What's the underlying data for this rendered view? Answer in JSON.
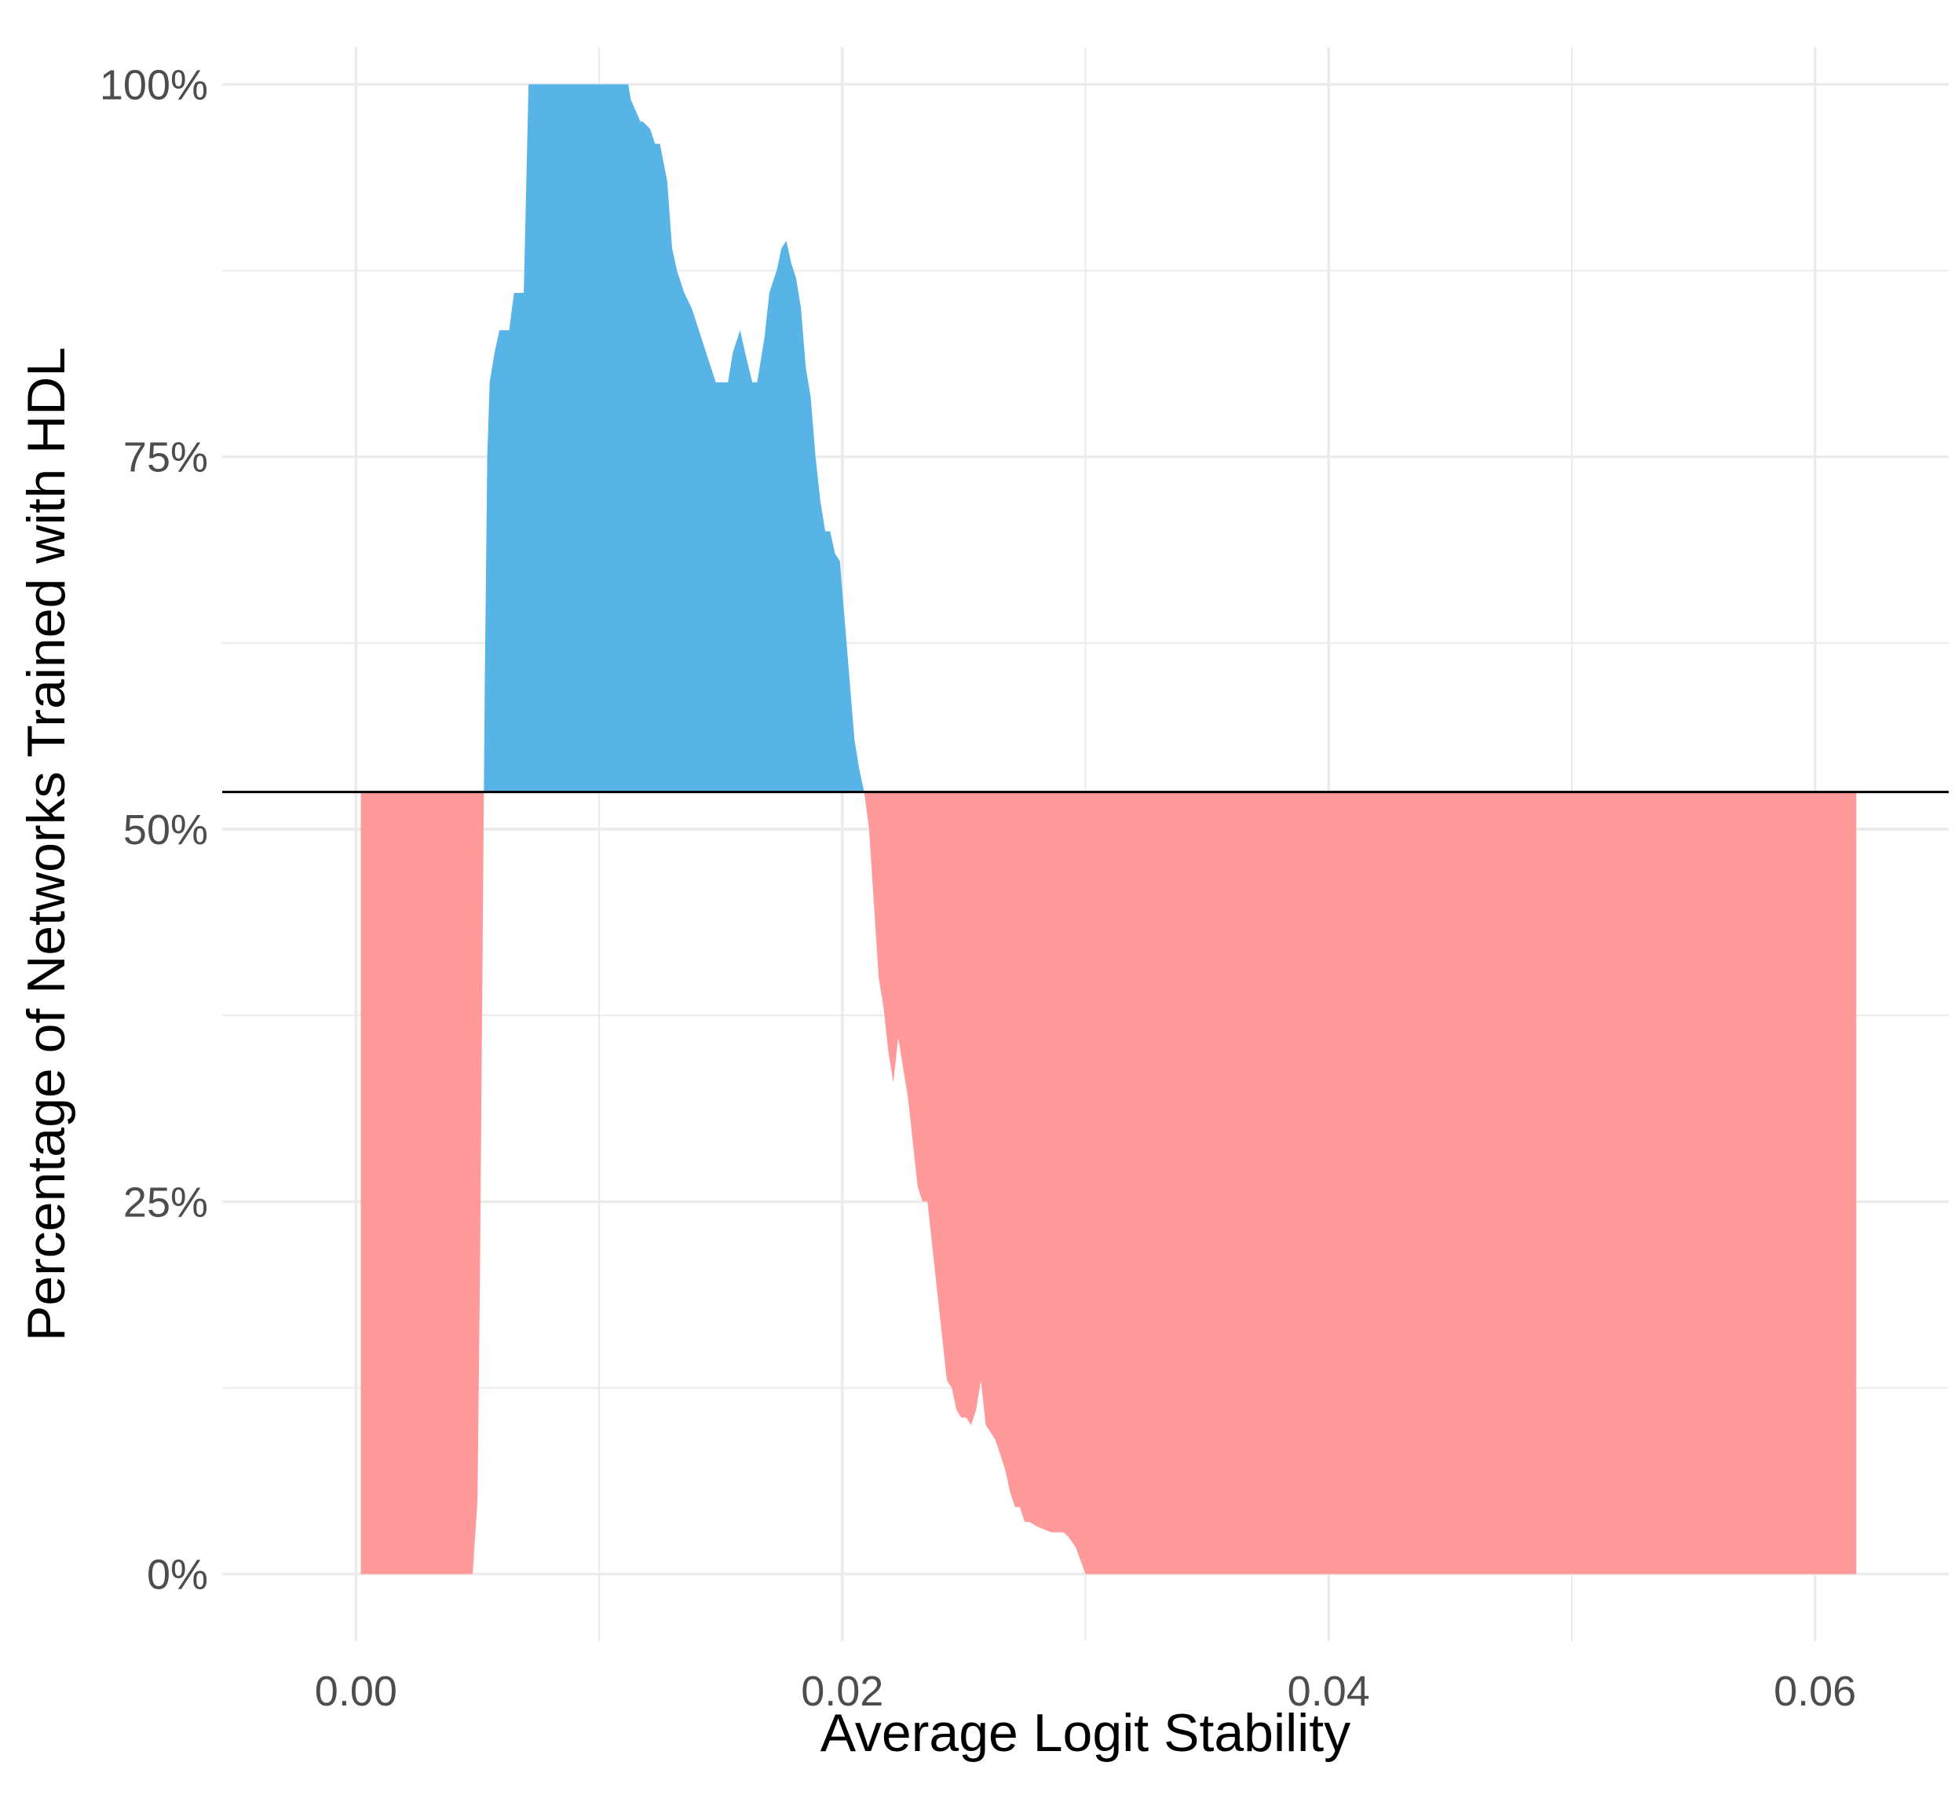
{
  "chart_data": {
    "type": "area",
    "title": "",
    "xlabel": "Average Logit Stability",
    "ylabel": "Percentage of Networks Trained with HDL",
    "xlim": [
      -0.0055,
      0.0655
    ],
    "ylim": [
      -0.045,
      1.025
    ],
    "x_ticks": [
      0.0,
      0.02,
      0.04,
      0.06
    ],
    "x_tick_labels": [
      "0.00",
      "0.02",
      "0.04",
      "0.06"
    ],
    "y_ticks": [
      0,
      0.25,
      0.5,
      0.75,
      1.0
    ],
    "y_tick_labels": [
      "0%",
      "25%",
      "50%",
      "75%",
      "100%"
    ],
    "reference_line": 0.525,
    "grid": true,
    "colors": {
      "above": "#58b3e6",
      "below": "#ff999a",
      "reference": "#000000",
      "grid": "#ebebeb"
    },
    "series": [
      {
        "x": [
          0.0002,
          0.0048,
          0.005,
          0.0051,
          0.0052,
          0.0053,
          0.0054,
          0.0055,
          0.0057,
          0.0059,
          0.0061,
          0.0063,
          0.0065,
          0.0067,
          0.0069,
          0.0071,
          0.0073,
          0.0075,
          0.0076,
          0.009,
          0.0098,
          0.01,
          0.0108,
          0.0112,
          0.0113,
          0.0117,
          0.0118,
          0.0121,
          0.0123,
          0.0125,
          0.0128,
          0.013,
          0.0132,
          0.0135,
          0.0138,
          0.014,
          0.0143,
          0.0145,
          0.0148,
          0.015,
          0.0153,
          0.0155,
          0.0158,
          0.016,
          0.0163,
          0.0165,
          0.0168,
          0.017,
          0.0173,
          0.0175,
          0.0177,
          0.0179,
          0.0181,
          0.0183,
          0.0185,
          0.0187,
          0.0189,
          0.0191,
          0.0193,
          0.0195,
          0.0197,
          0.0199,
          0.0201,
          0.0203,
          0.0205,
          0.0207,
          0.0209,
          0.0211,
          0.0213,
          0.0215,
          0.0217,
          0.0219,
          0.0221,
          0.0223,
          0.0225,
          0.0227,
          0.0229,
          0.0231,
          0.0233,
          0.0235,
          0.0237,
          0.0239,
          0.0241,
          0.0243,
          0.0245,
          0.0247,
          0.0249,
          0.0251,
          0.0253,
          0.0255,
          0.0257,
          0.0259,
          0.0261,
          0.0263,
          0.0265,
          0.0267,
          0.0269,
          0.0271,
          0.0273,
          0.0275,
          0.0277,
          0.028,
          0.0283,
          0.0286,
          0.0289,
          0.0291,
          0.0293,
          0.0296,
          0.03,
          0.035,
          0.04,
          0.045,
          0.05,
          0.055,
          0.06,
          0.0617
        ],
        "y": [
          0.0,
          0.0,
          0.05,
          0.2,
          0.4,
          0.6,
          0.75,
          0.8,
          0.82,
          0.835,
          0.835,
          0.835,
          0.86,
          0.86,
          0.86,
          1.0,
          1.0,
          1.0,
          1.0,
          1.0,
          1.0,
          1.0,
          1.0,
          1.0,
          0.99,
          0.975,
          0.975,
          0.97,
          0.96,
          0.96,
          0.935,
          0.89,
          0.875,
          0.86,
          0.85,
          0.84,
          0.825,
          0.815,
          0.8,
          0.8,
          0.8,
          0.82,
          0.835,
          0.82,
          0.8,
          0.8,
          0.83,
          0.86,
          0.875,
          0.89,
          0.895,
          0.88,
          0.87,
          0.85,
          0.81,
          0.79,
          0.75,
          0.72,
          0.7,
          0.7,
          0.685,
          0.68,
          0.64,
          0.6,
          0.56,
          0.54,
          0.525,
          0.5,
          0.45,
          0.4,
          0.38,
          0.35,
          0.33,
          0.36,
          0.34,
          0.32,
          0.29,
          0.26,
          0.25,
          0.25,
          0.22,
          0.19,
          0.16,
          0.13,
          0.125,
          0.11,
          0.105,
          0.105,
          0.1,
          0.11,
          0.13,
          0.1,
          0.095,
          0.09,
          0.08,
          0.07,
          0.055,
          0.045,
          0.045,
          0.035,
          0.035,
          0.032,
          0.03,
          0.028,
          0.028,
          0.028,
          0.025,
          0.018,
          0.0,
          0.0,
          0.0,
          0.0,
          0.0,
          0.0,
          0.0,
          0.0
        ]
      }
    ]
  }
}
